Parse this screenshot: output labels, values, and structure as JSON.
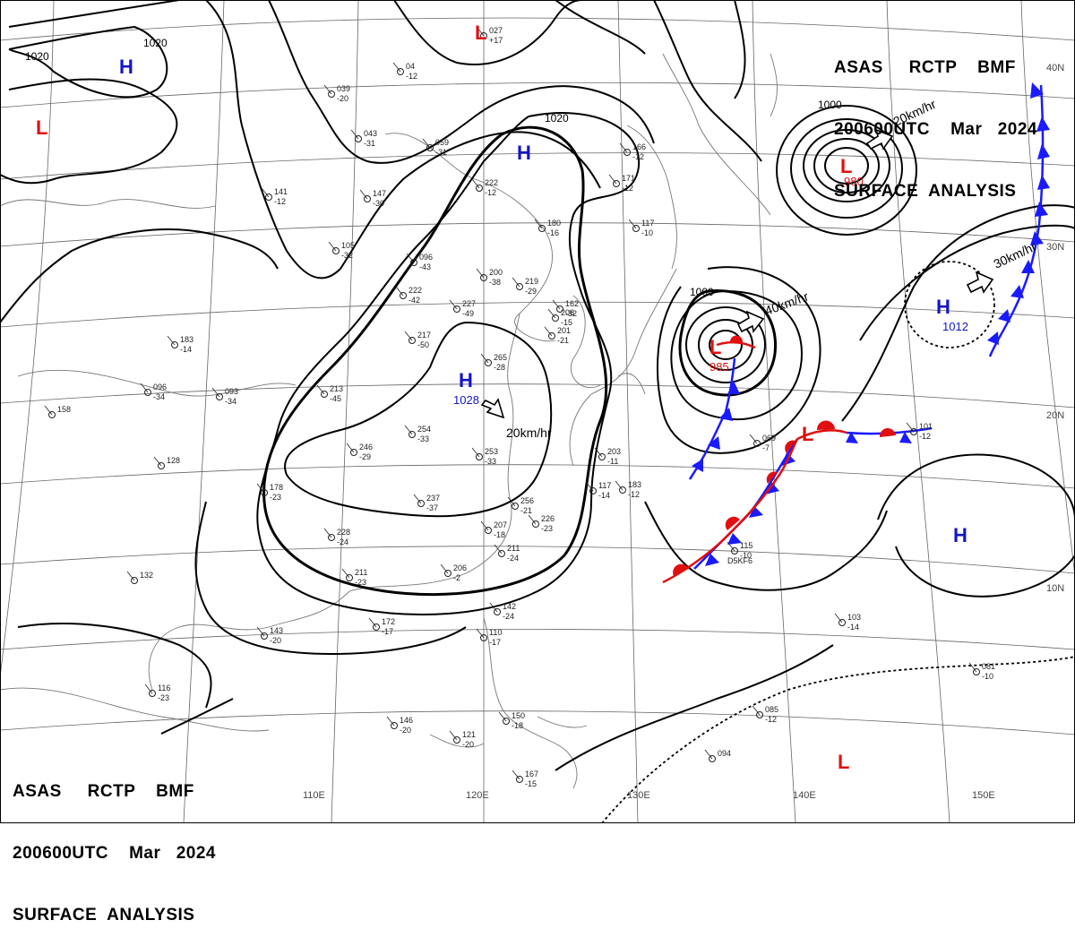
{
  "header": {
    "line1": "ASAS     RCTP    BMF",
    "line2": "200600UTC    Mar   2024",
    "line3": "SURFACE  ANALYSIS"
  },
  "colors": {
    "high": "#1414c8",
    "low": "#e01010",
    "cold_front": "#1a1aff",
    "warm_front": "#e01010",
    "isobar": "#000000",
    "grid": "#555555",
    "coast": "#666666"
  },
  "grid_labels": {
    "lon": [
      "110E",
      "120E",
      "130E",
      "140E",
      "150E"
    ],
    "lat": [
      "40N",
      "30N",
      "20N",
      "10N"
    ]
  },
  "isobar_labels": [
    "1020",
    "1020",
    "1020",
    "1000",
    "1000"
  ],
  "pressure_centers": [
    {
      "type": "H",
      "value": ""
    },
    {
      "type": "H",
      "value": ""
    },
    {
      "type": "H",
      "value": "1028"
    },
    {
      "type": "H",
      "value": "1012"
    },
    {
      "type": "H",
      "value": ""
    },
    {
      "type": "L",
      "value": ""
    },
    {
      "type": "L",
      "value": ""
    },
    {
      "type": "L",
      "value": "980"
    },
    {
      "type": "L",
      "value": "985"
    },
    {
      "type": "L",
      "value": ""
    },
    {
      "type": "L",
      "value": ""
    }
  ],
  "motion_vectors": [
    {
      "speed": "20km/hr"
    },
    {
      "speed": "20km/hr"
    },
    {
      "speed": "40km/hr"
    },
    {
      "speed": "30km/hr"
    }
  ],
  "station_plots": [
    {
      "t": "027",
      "b": "+17"
    },
    {
      "t": "04",
      "b": "-12"
    },
    {
      "t": "039",
      "b": "-20"
    },
    {
      "t": "043",
      "b": "-31"
    },
    {
      "t": "059",
      "b": "-31"
    },
    {
      "t": "141",
      "b": "-12"
    },
    {
      "t": "147",
      "b": "-30"
    },
    {
      "t": "105",
      "b": "-32"
    },
    {
      "t": "096",
      "b": "-43"
    },
    {
      "t": "222",
      "b": "-12"
    },
    {
      "t": "222",
      "b": "-42"
    },
    {
      "t": "200",
      "b": "-38"
    },
    {
      "t": "227",
      "b": "-49"
    },
    {
      "t": "217",
      "b": "-50"
    },
    {
      "t": "219",
      "b": "-29"
    },
    {
      "t": "180",
      "b": "-16"
    },
    {
      "t": "166",
      "b": "-12"
    },
    {
      "t": "171",
      "b": "-12"
    },
    {
      "t": "117",
      "b": "-10"
    },
    {
      "t": "183",
      "b": "-14"
    },
    {
      "t": "096",
      "b": "-34"
    },
    {
      "t": "093",
      "b": "-34"
    },
    {
      "t": "213",
      "b": "-45"
    },
    {
      "t": "265",
      "b": "-28"
    },
    {
      "t": "246",
      "b": "-29"
    },
    {
      "t": "254",
      "b": "-33"
    },
    {
      "t": "253",
      "b": "-33"
    },
    {
      "t": "178",
      "b": "-23"
    },
    {
      "t": "237",
      "b": "-37"
    },
    {
      "t": "256",
      "b": "-21"
    },
    {
      "t": "226",
      "b": "-23"
    },
    {
      "t": "228",
      "b": "-24"
    },
    {
      "t": "207",
      "b": "-18"
    },
    {
      "t": "211",
      "b": "-23"
    },
    {
      "t": "211",
      "b": "-24"
    },
    {
      "t": "206",
      "b": "-2"
    },
    {
      "t": "172",
      "b": "-17"
    },
    {
      "t": "143",
      "b": "-20"
    },
    {
      "t": "142",
      "b": "-24"
    },
    {
      "t": "110",
      "b": "-17"
    },
    {
      "t": "116",
      "b": "-23"
    },
    {
      "t": "146",
      "b": "-20"
    },
    {
      "t": "121",
      "b": "-20"
    },
    {
      "t": "150",
      "b": "-18"
    },
    {
      "t": "167",
      "b": "-15"
    },
    {
      "t": "203",
      "b": "-11"
    },
    {
      "t": "183",
      "b": "-12"
    },
    {
      "t": "117",
      "b": "-14"
    },
    {
      "t": "069",
      "b": "-7"
    },
    {
      "t": "101",
      "b": "-12"
    },
    {
      "t": "115",
      "b": "-10"
    },
    {
      "t": "103",
      "b": "-14"
    },
    {
      "t": "081",
      "b": "-10"
    },
    {
      "t": "085",
      "b": "-12"
    },
    {
      "t": "094",
      "b": ""
    },
    {
      "t": "128",
      "b": ""
    },
    {
      "t": "132",
      "b": ""
    },
    {
      "t": "158",
      "b": ""
    },
    {
      "t": "201",
      "b": "-21"
    },
    {
      "t": "162",
      "b": "-32"
    },
    {
      "t": "206",
      "b": "-15"
    }
  ],
  "station_extra": [
    "D5KF6"
  ]
}
